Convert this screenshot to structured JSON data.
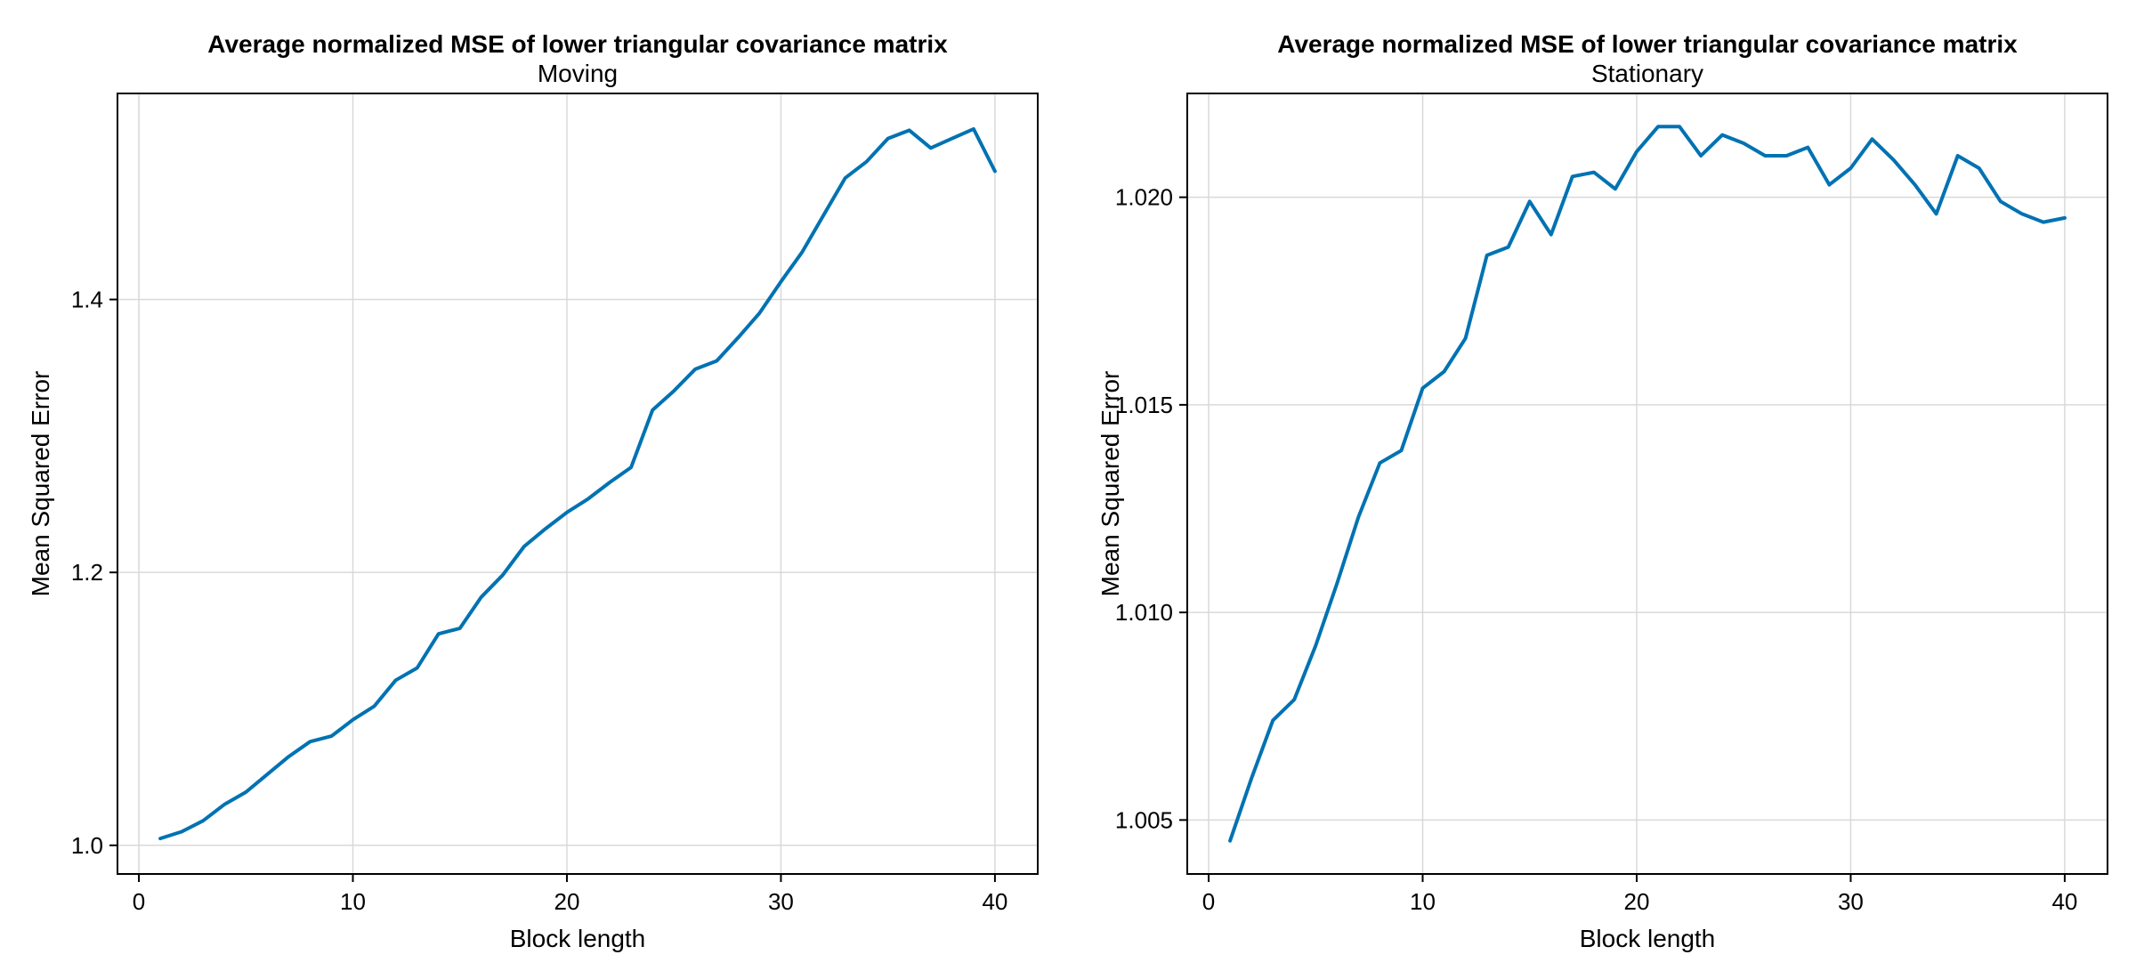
{
  "colors": {
    "series": "#0072b2",
    "grid": "#d9d9d9",
    "axis": "#000000"
  },
  "chart_data": [
    {
      "type": "line",
      "title": "Average normalized MSE of lower triangular covariance matrix",
      "subtitle": "Moving",
      "xlabel": "Block length",
      "ylabel": "Mean Squared Error",
      "xlim": [
        -1,
        42
      ],
      "ylim": [
        0.979,
        1.551
      ],
      "xticks": [
        0,
        10,
        20,
        30,
        40
      ],
      "xtick_labels": [
        "0",
        "10",
        "20",
        "30",
        "40"
      ],
      "yticks": [
        1.0,
        1.2,
        1.4
      ],
      "ytick_labels": [
        "1.0",
        "1.2",
        "1.4"
      ],
      "grid": true,
      "x": [
        1,
        2,
        3,
        4,
        5,
        6,
        7,
        8,
        9,
        10,
        11,
        12,
        13,
        14,
        15,
        16,
        17,
        18,
        19,
        20,
        21,
        22,
        23,
        24,
        25,
        26,
        27,
        28,
        29,
        30,
        31,
        32,
        33,
        34,
        35,
        36,
        37,
        38,
        39,
        40
      ],
      "series": [
        {
          "values": [
            1.005,
            1.01,
            1.018,
            1.03,
            1.039,
            1.052,
            1.065,
            1.076,
            1.08,
            1.092,
            1.102,
            1.121,
            1.13,
            1.155,
            1.159,
            1.182,
            1.198,
            1.219,
            1.232,
            1.244,
            1.254,
            1.266,
            1.277,
            1.319,
            1.333,
            1.349,
            1.355,
            1.372,
            1.39,
            1.413,
            1.435,
            1.462,
            1.489,
            1.501,
            1.518,
            1.524,
            1.511,
            1.518,
            1.525,
            1.494
          ]
        }
      ]
    },
    {
      "type": "line",
      "title": "Average normalized MSE of lower triangular covariance matrix",
      "subtitle": "Stationary",
      "xlabel": "Block length",
      "ylabel": "Mean Squared Error",
      "xlim": [
        -1,
        42
      ],
      "ylim": [
        1.0037,
        1.0225
      ],
      "xticks": [
        0,
        10,
        20,
        30,
        40
      ],
      "xtick_labels": [
        "0",
        "10",
        "20",
        "30",
        "40"
      ],
      "yticks": [
        1.005,
        1.01,
        1.015,
        1.02
      ],
      "ytick_labels": [
        "1.005",
        "1.010",
        "1.015",
        "1.020"
      ],
      "grid": true,
      "x": [
        1,
        2,
        3,
        4,
        5,
        6,
        7,
        8,
        9,
        10,
        11,
        12,
        13,
        14,
        15,
        16,
        17,
        18,
        19,
        20,
        21,
        22,
        23,
        24,
        25,
        26,
        27,
        28,
        29,
        30,
        31,
        32,
        33,
        34,
        35,
        36,
        37,
        38,
        39,
        40
      ],
      "series": [
        {
          "values": [
            1.0045,
            1.006,
            1.0074,
            1.0079,
            1.0092,
            1.0107,
            1.0123,
            1.0136,
            1.0139,
            1.0154,
            1.0158,
            1.0166,
            1.0186,
            1.0188,
            1.0199,
            1.0191,
            1.0205,
            1.0206,
            1.0202,
            1.0211,
            1.0217,
            1.0217,
            1.021,
            1.0215,
            1.0213,
            1.021,
            1.021,
            1.0212,
            1.0203,
            1.0207,
            1.0214,
            1.0209,
            1.0203,
            1.0196,
            1.021,
            1.0207,
            1.0199,
            1.0196,
            1.0194,
            1.0195
          ]
        }
      ]
    }
  ]
}
